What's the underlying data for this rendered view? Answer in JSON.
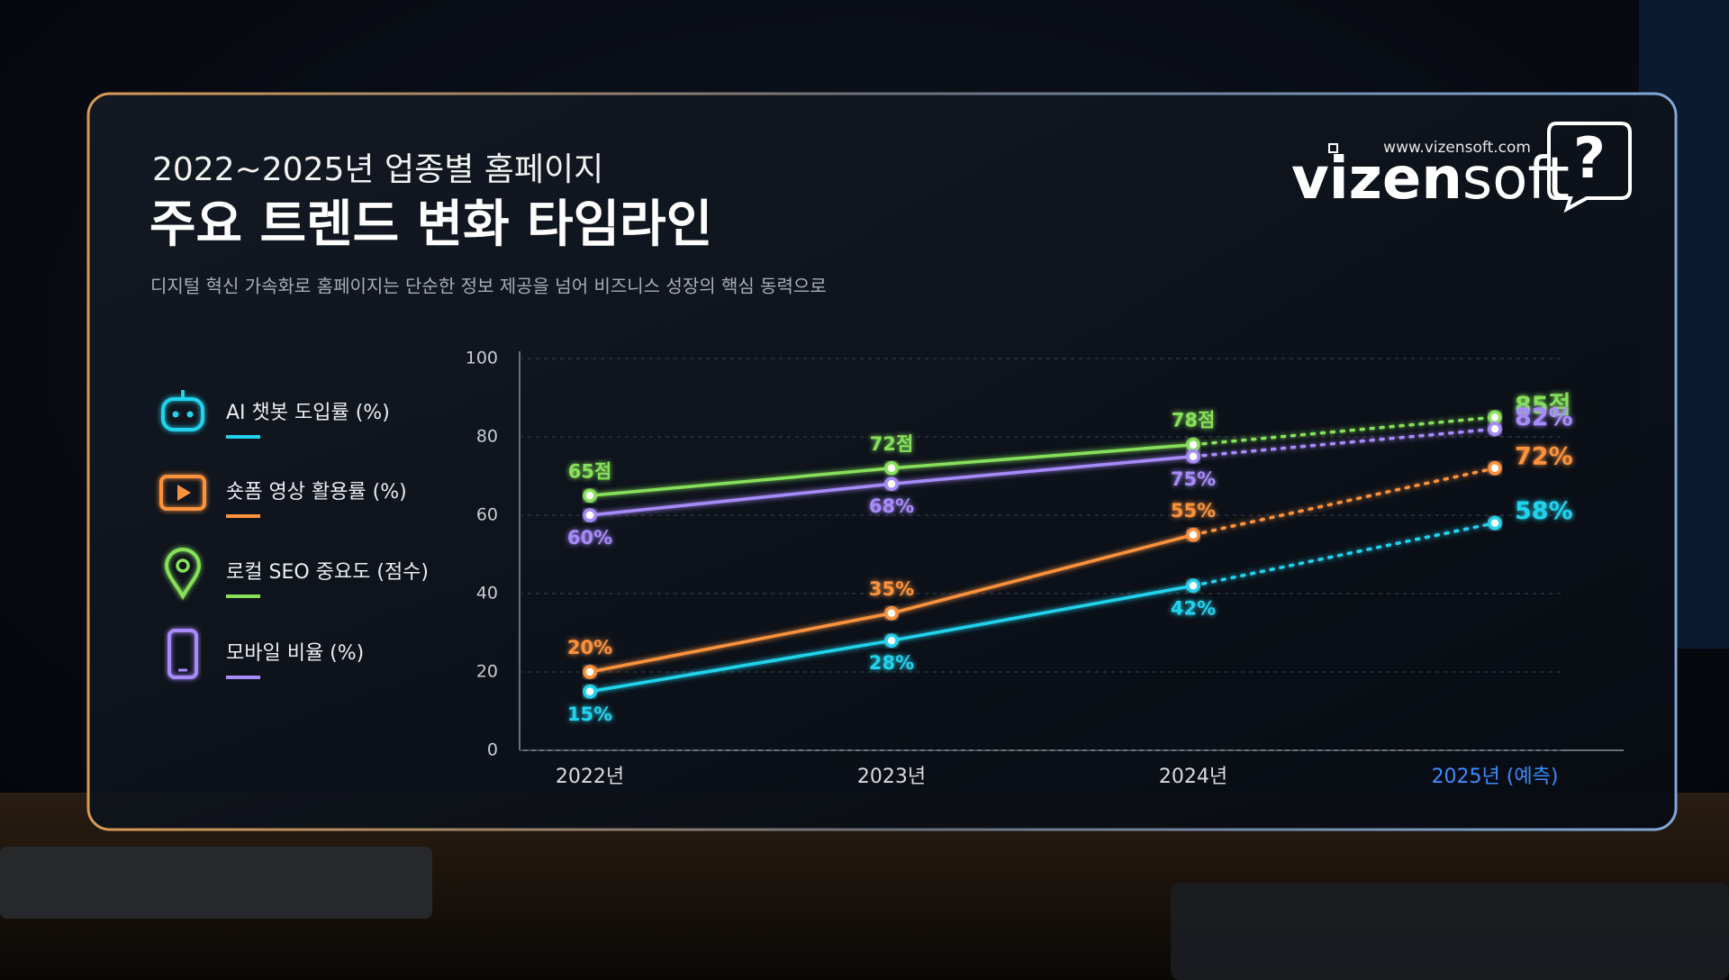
{
  "brand": {
    "url": "www.vizensoft.com",
    "name_bold": "vizen",
    "name_light": "soft",
    "mark": "?"
  },
  "chart_data": {
    "type": "line",
    "supertitle": "2022~2025년 업종별 홈페이지",
    "title": "주요 트렌드 변화 타임라인",
    "subtitle": "디지털 혁신 가속화로 홈페이지는 단순한 정보 제공을 넘어 비즈니스 성장의 핵심 동력으로",
    "categories": [
      "2022년",
      "2023년",
      "2024년",
      "2025년 (예측)"
    ],
    "forecast_from": 3,
    "forecast_color": "#3b8cff",
    "series": [
      {
        "name": "AI 챗봇 도입률 (%)",
        "color": "#22d3ee",
        "values": [
          15,
          28,
          42,
          58
        ],
        "value_labels": [
          "15%",
          "28%",
          "42%",
          "58%"
        ],
        "label_side": "below"
      },
      {
        "name": "숏폼 영상 활용률 (%)",
        "color": "#fb923c",
        "values": [
          20,
          35,
          55,
          72
        ],
        "value_labels": [
          "20%",
          "35%",
          "55%",
          "72%"
        ],
        "label_side": "above"
      },
      {
        "name": "로컬 SEO 중요도 (점수)",
        "color": "#86e05a",
        "values": [
          65,
          72,
          78,
          85
        ],
        "value_labels": [
          "65점",
          "72점",
          "78점",
          "85점"
        ],
        "label_side": "above"
      },
      {
        "name": "모바일 비율 (%)",
        "color": "#a78bfa",
        "values": [
          60,
          68,
          75,
          82
        ],
        "value_labels": [
          "60%",
          "68%",
          "75%",
          "82%"
        ],
        "label_side": "below"
      }
    ],
    "ylim": [
      0,
      100
    ],
    "yticks": [
      0,
      20,
      40,
      60,
      80,
      100
    ],
    "grid": true
  }
}
